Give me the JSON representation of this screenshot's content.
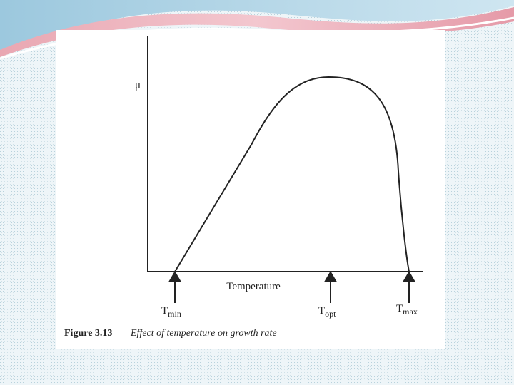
{
  "diagram": {
    "y_axis_label": "μ",
    "x_axis_label": "Temperature",
    "markers": [
      {
        "symbol": "T",
        "subscript": "min"
      },
      {
        "symbol": "T",
        "subscript": "opt"
      },
      {
        "symbol": "T",
        "subscript": "max"
      }
    ],
    "caption": {
      "number": "Figure 3.13",
      "text": "Effect of temperature on growth rate"
    }
  }
}
